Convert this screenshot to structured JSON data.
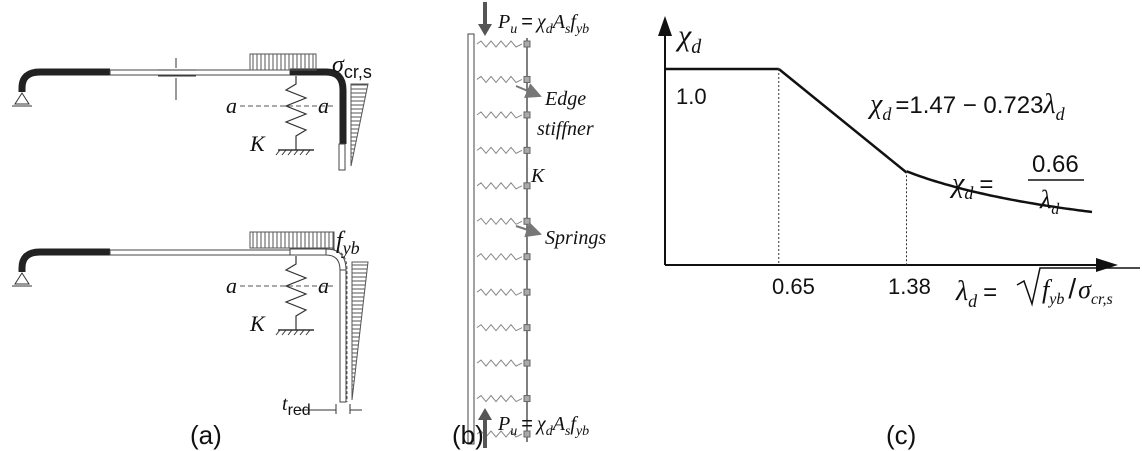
{
  "panel_a": {
    "caption": "(a)",
    "top": {
      "a_left": "a",
      "a_right": "a",
      "K": "K",
      "sigma": "σ",
      "sigma_sub": "cr,s"
    },
    "bottom": {
      "a_left": "a",
      "a_right": "a",
      "K": "K",
      "f": "f",
      "f_sub": "yb",
      "t": "t",
      "t_sub": "red"
    }
  },
  "panel_b": {
    "caption": "(b)",
    "top_load": {
      "P": "P",
      "P_sub": "u",
      "eq": "=",
      "chi": "χ",
      "chi_sub": "d",
      "A": "A",
      "A_sub": "s",
      "f": "f",
      "f_sub": "yb"
    },
    "bottom_load": {
      "P": "P",
      "P_sub": "u",
      "eq": "=",
      "chi": "χ",
      "chi_sub": "d",
      "A": "A",
      "A_sub": "s",
      "f": "f",
      "f_sub": "yb"
    },
    "edge_label_1": "Edge",
    "edge_label_2": "stiffner",
    "K": "K",
    "springs": "Springs"
  },
  "panel_c": {
    "caption": "(c)",
    "y_axis": {
      "chi": "χ",
      "chi_sub": "d"
    },
    "y_tick": "1.0",
    "x_ticks": [
      "0.65",
      "1.38"
    ],
    "x_axis": {
      "lambda": "λ",
      "lambda_sub": "d",
      "eq": "=",
      "f": "f",
      "f_sub": "yb",
      "slash": "/",
      "sigma": "σ",
      "sigma_sub": "cr,s"
    },
    "eq1": {
      "chi": "χ",
      "chi_sub": "d",
      "rhs": "=1.47 − 0.723",
      "lambda": "λ",
      "lambda_sub": "d"
    },
    "eq2": {
      "chi": "χ",
      "chi_sub": "d",
      "eq": "=",
      "num": "0.66",
      "den": "λ",
      "den_sub": "d"
    },
    "chart_data": {
      "type": "line",
      "series": [
        {
          "x": [
            0.0,
            0.65
          ],
          "y": [
            1.0,
            1.0
          ]
        },
        {
          "x": [
            0.65,
            1.38
          ],
          "y": [
            1.0,
            0.472
          ]
        },
        {
          "x": [
            1.38,
            1.6,
            1.8,
            2.0,
            2.2,
            2.45
          ],
          "y": [
            0.478,
            0.4125,
            0.3667,
            0.33,
            0.3,
            0.2694
          ]
        }
      ],
      "xlim": [
        0,
        2.55
      ],
      "ylim": [
        0,
        1.2
      ]
    }
  }
}
